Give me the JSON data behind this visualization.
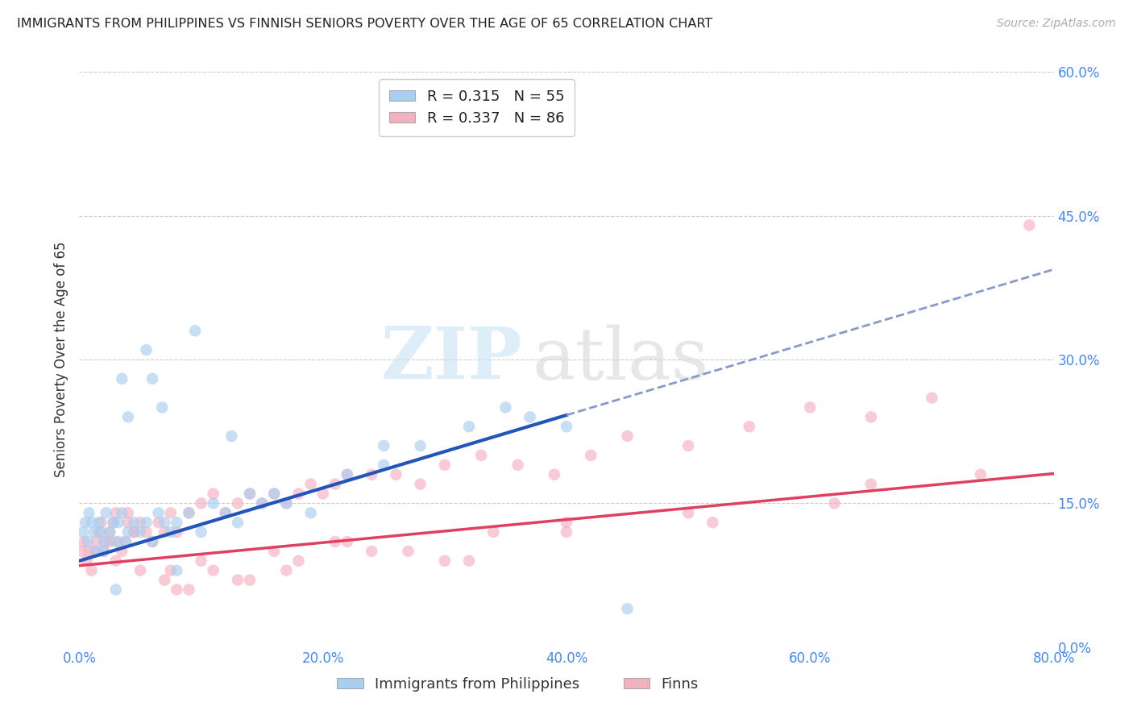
{
  "title": "IMMIGRANTS FROM PHILIPPINES VS FINNISH SENIORS POVERTY OVER THE AGE OF 65 CORRELATION CHART",
  "source": "Source: ZipAtlas.com",
  "ylabel": "Seniors Poverty Over the Age of 65",
  "xlim": [
    0,
    80
  ],
  "ylim": [
    0,
    60
  ],
  "xlabel_tick_vals": [
    0,
    20,
    40,
    60,
    80
  ],
  "xlabel_ticks": [
    "0.0%",
    "20.0%",
    "40.0%",
    "60.0%",
    "80.0%"
  ],
  "ylabel_tick_vals": [
    0,
    15,
    30,
    45,
    60
  ],
  "ylabel_ticks": [
    "0.0%",
    "15.0%",
    "30.0%",
    "45.0%",
    "60.0%"
  ],
  "grid_color": "#cccccc",
  "blue_scatter_color": "#a8cef0",
  "pink_scatter_color": "#f5b0c0",
  "blue_line_color": "#2255bb",
  "pink_line_color": "#e04060",
  "blue_dash_color": "#8899cc",
  "tick_color": "#4488ff",
  "legend_label_blue": "R = 0.315   N = 55",
  "legend_label_pink": "R = 0.337   N = 86",
  "legend_bottom_blue": "Immigrants from Philippines",
  "legend_bottom_pink": "Finns",
  "blue_solid_end": 40,
  "blue_intercept": 9.0,
  "blue_slope": 0.38,
  "pink_intercept": 8.5,
  "pink_slope": 0.12,
  "blue_x": [
    0.3,
    0.5,
    0.7,
    0.8,
    1.0,
    1.2,
    1.4,
    1.6,
    1.8,
    2.0,
    2.2,
    2.5,
    2.8,
    3.0,
    3.2,
    3.5,
    3.8,
    4.0,
    4.5,
    5.0,
    5.5,
    6.0,
    6.5,
    7.0,
    7.5,
    8.0,
    9.0,
    10.0,
    11.0,
    12.0,
    13.0,
    14.0,
    15.0,
    17.0,
    19.0,
    22.0,
    25.0,
    28.0,
    32.0,
    37.0,
    40.0,
    5.5,
    3.5,
    6.8,
    2.0,
    3.0,
    4.0,
    6.0,
    8.0,
    9.5,
    12.5,
    16.0,
    25.0,
    35.0,
    45.0
  ],
  "blue_y": [
    12,
    13,
    11,
    14,
    13,
    12,
    10,
    13,
    12,
    11,
    14,
    12,
    13,
    11,
    13,
    14,
    11,
    12,
    13,
    12,
    13,
    11,
    14,
    13,
    12,
    13,
    14,
    12,
    15,
    14,
    13,
    16,
    15,
    15,
    14,
    18,
    19,
    21,
    23,
    24,
    23,
    31,
    28,
    25,
    10,
    6,
    24,
    28,
    8,
    33,
    22,
    16,
    21,
    25,
    4
  ],
  "pink_x": [
    0.2,
    0.4,
    0.6,
    0.8,
    1.0,
    1.2,
    1.4,
    1.6,
    1.8,
    2.0,
    2.2,
    2.5,
    2.8,
    3.0,
    3.2,
    3.5,
    3.8,
    4.0,
    4.5,
    5.0,
    5.5,
    6.0,
    6.5,
    7.0,
    7.5,
    8.0,
    9.0,
    10.0,
    11.0,
    12.0,
    13.0,
    14.0,
    15.0,
    16.0,
    17.0,
    18.0,
    19.0,
    20.0,
    21.0,
    22.0,
    24.0,
    26.0,
    28.0,
    30.0,
    33.0,
    36.0,
    39.0,
    42.0,
    45.0,
    50.0,
    55.0,
    60.0,
    65.0,
    70.0,
    3.0,
    5.0,
    7.0,
    9.0,
    13.0,
    17.0,
    21.0,
    27.0,
    34.0,
    2.5,
    4.5,
    7.5,
    10.0,
    14.0,
    18.0,
    24.0,
    32.0,
    40.0,
    50.0,
    62.0,
    74.0,
    4.0,
    8.0,
    11.0,
    16.0,
    22.0,
    30.0,
    40.0,
    52.0,
    65.0,
    78.0
  ],
  "pink_y": [
    10,
    11,
    9,
    10,
    8,
    10,
    11,
    12,
    13,
    10,
    11,
    12,
    13,
    14,
    11,
    10,
    11,
    14,
    12,
    13,
    12,
    11,
    13,
    12,
    14,
    12,
    14,
    15,
    16,
    14,
    15,
    16,
    15,
    16,
    15,
    16,
    17,
    16,
    17,
    18,
    18,
    18,
    17,
    19,
    20,
    19,
    18,
    20,
    22,
    21,
    23,
    25,
    24,
    26,
    9,
    8,
    7,
    6,
    7,
    8,
    11,
    10,
    12,
    11,
    12,
    8,
    9,
    7,
    9,
    10,
    9,
    13,
    14,
    15,
    18,
    13,
    6,
    8,
    10,
    11,
    9,
    12,
    13,
    17,
    44
  ]
}
